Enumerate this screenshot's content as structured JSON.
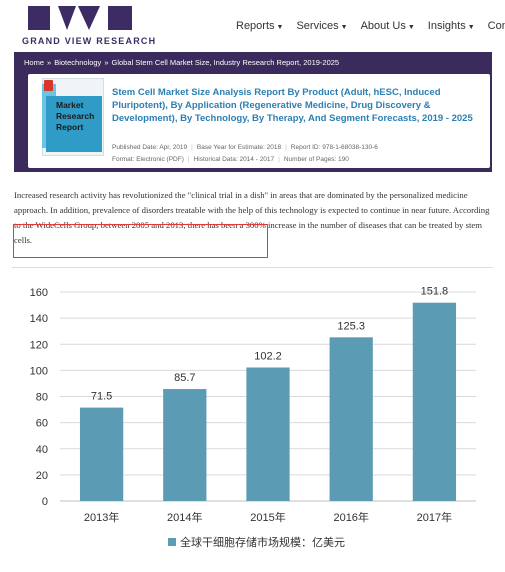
{
  "site": {
    "logo_text": "GRAND VIEW RESEARCH",
    "nav": [
      {
        "label": "Reports"
      },
      {
        "label": "Services"
      },
      {
        "label": "About Us"
      },
      {
        "label": "Insights"
      },
      {
        "label": "Compa"
      }
    ],
    "breadcrumb": [
      "Home",
      "Biotechnology",
      "Global Stem Cell Market Size, Industry Research Report, 2019-2025"
    ],
    "cover_text": "Market Research Report",
    "report_title": "Stem Cell Market Size Analysis Report By Product (Adult, hESC, Induced Pluripotent), By Application (Regenerative Medicine, Drug Discovery & Development), By Technology, By Therapy, And Segment Forecasts, 2019 - 2025",
    "meta": {
      "published": "Published Date: Apr, 2019",
      "base_year": "Base Year for Estimate: 2018",
      "report_id": "Report ID: 978-1-68038-130-6",
      "format": "Format: Electronic (PDF)",
      "historical": "Historical Data: 2014 - 2017",
      "pages": "Number of Pages: 190"
    },
    "paragraph": "Increased research activity has revolutionized the \"clinical trial in a dish\" in areas that are dominated by the personalized medicine approach. In addition, prevalence of disorders treatable with the help of this technology is expected to continue in near future. According to the WideCells Group, between 2005 and 2013, there has been a 300% increase in the number of diseases that can be treated by stem cells.",
    "colors": {
      "brand_purple": "#3b2a5c",
      "title_blue": "#2b7fb3",
      "highlight_red": "#e23a34"
    }
  },
  "chart_data": {
    "type": "bar",
    "categories": [
      "2013年",
      "2014年",
      "2015年",
      "2016年",
      "2017年"
    ],
    "series": [
      {
        "name": "全球干细胞存储市场规模：亿美元",
        "values": [
          71.5,
          85.7,
          102.2,
          125.3,
          151.8
        ]
      }
    ],
    "data_labels": [
      "71.5",
      "85.7",
      "102.2",
      "125.3",
      "151.8"
    ],
    "ylim": [
      0,
      160
    ],
    "yticks": [
      0,
      20,
      40,
      60,
      80,
      100,
      120,
      140,
      160
    ],
    "grid": true,
    "legend": "bottom-center",
    "bar_color": "#5b9bb4"
  }
}
